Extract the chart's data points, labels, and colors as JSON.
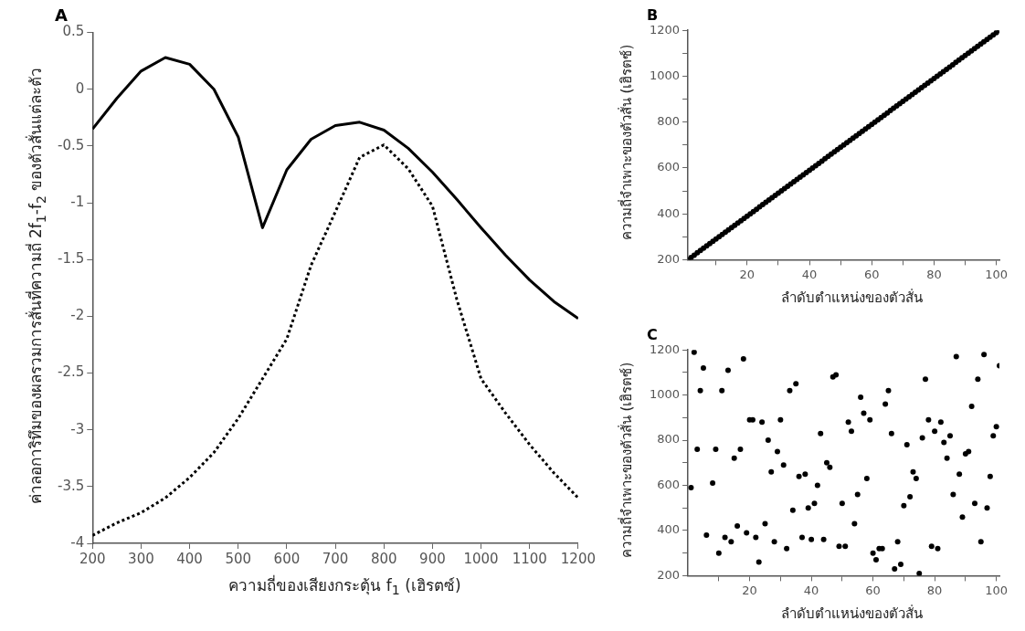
{
  "chart_data": [
    {
      "type": "line",
      "title": "A",
      "xlabel": "ความถี่ของเสียงกระตุ้น f$_{1}$ (เฮิรตซ์)",
      "ylabel": "ค่าลอการิทึมของผลรวมการสั่นที่ความถี่ 2f$_{1}$-f$_{2}$ ของตัวสั่นแต่ละตัว",
      "x": [
        200,
        250,
        300,
        350,
        400,
        450,
        500,
        550,
        600,
        650,
        700,
        750,
        800,
        850,
        900,
        950,
        1000,
        1050,
        1100,
        1150,
        1200
      ],
      "series": [
        {
          "color": "#000000",
          "line_style": "solid",
          "values": [
            -0.35,
            -0.08,
            0.16,
            0.28,
            0.22,
            0.0,
            -0.42,
            -1.22,
            -0.71,
            -0.44,
            -0.32,
            -0.29,
            -0.36,
            -0.52,
            -0.73,
            -0.97,
            -1.22,
            -1.46,
            -1.68,
            -1.87,
            -2.02
          ]
        },
        {
          "color": "#000000",
          "line_style": "dotted",
          "values": [
            -3.93,
            -3.82,
            -3.73,
            -3.6,
            -3.42,
            -3.2,
            -2.9,
            -2.55,
            -2.2,
            -1.55,
            -1.08,
            -0.6,
            -0.49,
            -0.7,
            -1.03,
            -1.85,
            -2.55,
            -2.85,
            -3.13,
            -3.38,
            -3.6
          ]
        }
      ],
      "xlim": [
        200,
        1200
      ],
      "xticks": [
        200,
        300,
        400,
        500,
        600,
        700,
        800,
        900,
        1000,
        1100,
        1200
      ],
      "ylim": [
        -4,
        0.5
      ],
      "yticks": [
        -4,
        -3.5,
        -3,
        -2.5,
        -2,
        -1.5,
        -1,
        -0.5,
        0,
        0.5
      ],
      "grid": false,
      "legend": false,
      "marker": "none"
    },
    {
      "type": "scatter",
      "title": "B",
      "xlabel": "ลำดับตำแหน่งของตัวสั่น",
      "ylabel": "ความถี่จำเพาะของตัวสั่น (เฮิรตซ์)",
      "x": [
        1,
        2,
        3,
        4,
        5,
        6,
        7,
        8,
        9,
        10,
        11,
        12,
        13,
        14,
        15,
        16,
        17,
        18,
        19,
        20,
        21,
        22,
        23,
        24,
        25,
        26,
        27,
        28,
        29,
        30,
        31,
        32,
        33,
        34,
        35,
        36,
        37,
        38,
        39,
        40,
        41,
        42,
        43,
        44,
        45,
        46,
        47,
        48,
        49,
        50,
        51,
        52,
        53,
        54,
        55,
        56,
        57,
        58,
        59,
        60,
        61,
        62,
        63,
        64,
        65,
        66,
        67,
        68,
        69,
        70,
        71,
        72,
        73,
        74,
        75,
        76,
        77,
        78,
        79,
        80,
        81,
        82,
        83,
        84,
        85,
        86,
        87,
        88,
        89,
        90,
        91,
        92,
        93,
        94,
        95,
        96,
        97,
        98,
        99,
        100,
        101
      ],
      "series": [
        {
          "color": "#000000",
          "values": [
            200,
            210,
            220,
            230,
            240,
            250,
            260,
            270,
            280,
            290,
            300,
            310,
            320,
            330,
            340,
            350,
            360,
            370,
            380,
            390,
            400,
            410,
            420,
            430,
            440,
            450,
            460,
            470,
            480,
            490,
            500,
            510,
            520,
            530,
            540,
            550,
            560,
            570,
            580,
            590,
            600,
            610,
            620,
            630,
            640,
            650,
            660,
            670,
            680,
            690,
            700,
            710,
            720,
            730,
            740,
            750,
            760,
            770,
            780,
            790,
            800,
            810,
            820,
            830,
            840,
            850,
            860,
            870,
            880,
            890,
            900,
            910,
            920,
            930,
            940,
            950,
            960,
            970,
            980,
            990,
            1000,
            1010,
            1020,
            1030,
            1040,
            1050,
            1060,
            1070,
            1080,
            1090,
            1100,
            1110,
            1120,
            1130,
            1140,
            1150,
            1160,
            1170,
            1180,
            1190,
            1200
          ]
        }
      ],
      "xlim": [
        1,
        101
      ],
      "xticks": [
        {
          "value": 10,
          "label": null
        },
        20,
        {
          "value": 30,
          "label": null
        },
        40,
        {
          "value": 50,
          "label": null
        },
        60,
        {
          "value": 70,
          "label": null
        },
        80,
        {
          "value": 90,
          "label": null
        },
        100
      ],
      "ylim": [
        200,
        1200
      ],
      "yticks": [
        200,
        {
          "value": 300,
          "label": null
        },
        400,
        {
          "value": 500,
          "label": null
        },
        600,
        {
          "value": 700,
          "label": null
        },
        800,
        {
          "value": 900,
          "label": null
        },
        1000,
        {
          "value": 1100,
          "label": null
        },
        1200
      ],
      "grid": false,
      "legend": false,
      "marker": "circle"
    },
    {
      "type": "scatter",
      "title": "C",
      "xlabel": "ลำดับตำแหน่งของตัวสั่น",
      "ylabel": "ความถี่จำเพาะของตัวสั่น (เฮิรตซ์)",
      "series": [
        {
          "color": "#000000",
          "x": [
            1,
            2,
            3,
            4,
            5,
            6,
            8,
            9,
            10,
            11,
            12,
            13,
            14,
            15,
            16,
            17,
            18,
            19,
            20,
            21,
            22,
            23,
            24,
            25,
            26,
            27,
            28,
            29,
            30,
            31,
            32,
            33,
            34,
            35,
            36,
            37,
            38,
            39,
            40,
            41,
            42,
            43,
            44,
            45,
            46,
            47,
            48,
            49,
            50,
            51,
            52,
            53,
            54,
            55,
            56,
            57,
            58,
            59,
            60,
            61,
            62,
            63,
            64,
            65,
            66,
            67,
            68,
            69,
            70,
            71,
            72,
            73,
            74,
            75,
            76,
            77,
            78,
            79,
            80,
            81,
            82,
            83,
            84,
            85,
            86,
            87,
            88,
            89,
            90,
            91,
            92,
            93,
            94,
            95,
            96,
            97,
            98,
            99,
            100,
            101
          ],
          "values": [
            590,
            1190,
            760,
            1020,
            1120,
            380,
            610,
            760,
            300,
            1020,
            370,
            1110,
            350,
            720,
            420,
            760,
            1160,
            390,
            890,
            890,
            370,
            260,
            880,
            430,
            800,
            660,
            350,
            750,
            890,
            690,
            320,
            1020,
            490,
            1050,
            640,
            370,
            650,
            500,
            360,
            520,
            600,
            830,
            360,
            700,
            680,
            1080,
            1090,
            330,
            520,
            330,
            880,
            840,
            430,
            560,
            990,
            920,
            630,
            890,
            300,
            270,
            320,
            320,
            960,
            1020,
            830,
            230,
            350,
            250,
            510,
            780,
            550,
            660,
            630,
            210,
            810,
            1070,
            890,
            330,
            840,
            320,
            880,
            790,
            720,
            820,
            560,
            1170,
            650,
            460,
            740,
            750,
            950,
            520,
            1070,
            350,
            1180,
            500,
            640,
            820,
            860,
            1130
          ]
        }
      ],
      "xlim": [
        0,
        101
      ],
      "xticks": [
        {
          "value": 10,
          "label": null
        },
        20,
        {
          "value": 30,
          "label": null
        },
        40,
        {
          "value": 50,
          "label": null
        },
        60,
        {
          "value": 70,
          "label": null
        },
        80,
        {
          "value": 90,
          "label": null
        },
        100
      ],
      "ylim": [
        200,
        1200
      ],
      "yticks": [
        200,
        {
          "value": 300,
          "label": null
        },
        400,
        {
          "value": 500,
          "label": null
        },
        600,
        {
          "value": 700,
          "label": null
        },
        800,
        {
          "value": 900,
          "label": null
        },
        1000,
        {
          "value": 1100,
          "label": null
        },
        1200
      ],
      "grid": false,
      "legend": false,
      "marker": "circle"
    }
  ]
}
